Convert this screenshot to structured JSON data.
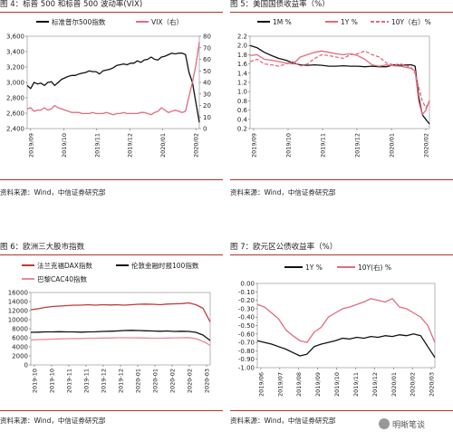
{
  "panels": [
    {
      "title": "图 4：标普 500 和标普 500 波动率(VIX)",
      "source": "资料来源：Wind，中信证券研究部",
      "chart_data": {
        "type": "line",
        "x_ticks": [
          "2019/09",
          "2019/10",
          "2019/11",
          "2019/12",
          "2020/01",
          "2020/02"
        ],
        "ylim_left": [
          2400,
          3600
        ],
        "yticks_left": [
          "2,400",
          "2,600",
          "2,800",
          "3,000",
          "3,200",
          "3,400",
          "3,600"
        ],
        "ylim_right": [
          0,
          80
        ],
        "yticks_right": [
          "0",
          "10",
          "20",
          "30",
          "40",
          "50",
          "60",
          "70",
          "80"
        ],
        "legend": "top",
        "series": [
          {
            "name": "标准普尔500指数",
            "axis": "left",
            "color": "#111111",
            "x": [
              0,
              0.02,
              0.04,
              0.06,
              0.08,
              0.1,
              0.12,
              0.14,
              0.16,
              0.18,
              0.2,
              0.22,
              0.24,
              0.26,
              0.28,
              0.3,
              0.32,
              0.34,
              0.36,
              0.38,
              0.4,
              0.42,
              0.44,
              0.46,
              0.48,
              0.5,
              0.52,
              0.54,
              0.56,
              0.58,
              0.6,
              0.62,
              0.64,
              0.66,
              0.68,
              0.7,
              0.72,
              0.74,
              0.76,
              0.78,
              0.8,
              0.82,
              0.84,
              0.86,
              0.88,
              0.9,
              0.92,
              0.94,
              0.96,
              0.98,
              1.0
            ],
            "y": [
              2960,
              2920,
              3000,
              2980,
              2990,
              2960,
              3000,
              3010,
              2960,
              3000,
              3040,
              3060,
              3080,
              3090,
              3090,
              3110,
              3120,
              3130,
              3150,
              3140,
              3140,
              3110,
              3150,
              3160,
              3170,
              3190,
              3220,
              3230,
              3240,
              3230,
              3250,
              3250,
              3280,
              3260,
              3290,
              3300,
              3330,
              3300,
              3290,
              3330,
              3340,
              3360,
              3380,
              3370,
              3380,
              3380,
              3360,
              3130,
              3000,
              2740,
              2480
            ]
          },
          {
            "name": "VIX（右）",
            "axis": "right",
            "color": "#e26b7d",
            "x": [
              0,
              0.02,
              0.04,
              0.06,
              0.08,
              0.1,
              0.12,
              0.14,
              0.16,
              0.18,
              0.2,
              0.22,
              0.24,
              0.26,
              0.28,
              0.3,
              0.32,
              0.34,
              0.36,
              0.38,
              0.4,
              0.42,
              0.44,
              0.46,
              0.48,
              0.5,
              0.52,
              0.54,
              0.56,
              0.58,
              0.6,
              0.62,
              0.64,
              0.66,
              0.68,
              0.7,
              0.72,
              0.74,
              0.76,
              0.78,
              0.8,
              0.82,
              0.84,
              0.86,
              0.88,
              0.9,
              0.92,
              0.94,
              0.96,
              0.98,
              1.0
            ],
            "y": [
              17,
              18,
              15,
              16,
              16,
              18,
              16,
              17,
              20,
              18,
              17,
              16,
              15,
              14,
              14,
              14,
              13,
              13,
              13,
              14,
              13,
              13,
              13,
              14,
              13,
              12,
              13,
              13,
              14,
              13,
              13,
              13,
              13,
              14,
              14,
              13,
              12,
              14,
              15,
              18,
              16,
              14,
              15,
              16,
              15,
              14,
              15,
              28,
              40,
              55,
              75
            ]
          }
        ]
      }
    },
    {
      "title": "图 5：美国国债收益率（%）",
      "source": "资料来源：Wind，中信证券研究部",
      "chart_data": {
        "type": "line",
        "x_ticks": [
          "2019/09",
          "2019/10",
          "2019/11",
          "2019/12",
          "2020/01",
          "2020/02"
        ],
        "ylim": [
          0.2,
          2.2
        ],
        "yticks": [
          "0.2",
          "0.4",
          "0.6",
          "0.8",
          "1.0",
          "1.2",
          "1.4",
          "1.6",
          "1.8",
          "2.0",
          "2.2"
        ],
        "legend": "top",
        "series": [
          {
            "name": "1M %",
            "color": "#111111",
            "dash": "solid",
            "x": [
              0,
              0.04,
              0.08,
              0.12,
              0.16,
              0.2,
              0.24,
              0.28,
              0.32,
              0.36,
              0.4,
              0.44,
              0.48,
              0.52,
              0.56,
              0.6,
              0.64,
              0.68,
              0.72,
              0.76,
              0.8,
              0.84,
              0.88,
              0.9,
              0.92,
              0.94,
              0.96,
              0.98,
              1.0
            ],
            "y": [
              2.0,
              1.95,
              1.85,
              1.78,
              1.72,
              1.68,
              1.62,
              1.58,
              1.57,
              1.58,
              1.57,
              1.55,
              1.55,
              1.56,
              1.55,
              1.55,
              1.54,
              1.55,
              1.54,
              1.54,
              1.58,
              1.57,
              1.58,
              1.58,
              1.55,
              0.9,
              0.5,
              0.4,
              0.3
            ]
          },
          {
            "name": "1Y %",
            "color": "#e26b7d",
            "dash": "solid",
            "x": [
              0,
              0.04,
              0.08,
              0.12,
              0.16,
              0.2,
              0.24,
              0.28,
              0.32,
              0.36,
              0.4,
              0.44,
              0.48,
              0.52,
              0.56,
              0.6,
              0.64,
              0.68,
              0.72,
              0.76,
              0.8,
              0.84,
              0.88,
              0.9,
              0.92,
              0.94,
              0.96,
              0.98,
              1.0
            ],
            "y": [
              1.78,
              1.8,
              1.7,
              1.68,
              1.65,
              1.62,
              1.6,
              1.75,
              1.8,
              1.85,
              1.88,
              1.85,
              1.82,
              1.8,
              1.82,
              1.78,
              1.7,
              1.58,
              1.55,
              1.58,
              1.56,
              1.55,
              1.52,
              1.5,
              1.45,
              0.8,
              0.5,
              0.6,
              0.8
            ]
          },
          {
            "name": "10Y（右）%",
            "color": "#e26b7d",
            "dash": "dashed",
            "x": [
              0,
              0.04,
              0.08,
              0.12,
              0.16,
              0.2,
              0.24,
              0.28,
              0.32,
              0.36,
              0.4,
              0.44,
              0.48,
              0.52,
              0.56,
              0.6,
              0.64,
              0.68,
              0.72,
              0.76,
              0.8,
              0.84,
              0.88,
              0.9,
              0.92,
              0.94,
              0.96,
              0.98,
              1.0
            ],
            "y": [
              1.65,
              1.7,
              1.6,
              1.58,
              1.55,
              1.6,
              1.65,
              1.55,
              1.6,
              1.72,
              1.8,
              1.78,
              1.75,
              1.72,
              1.8,
              1.82,
              1.88,
              1.8,
              1.75,
              1.62,
              1.58,
              1.6,
              1.55,
              1.52,
              1.4,
              1.1,
              0.8,
              0.65,
              0.8
            ]
          }
        ]
      }
    },
    {
      "title": "图 6：欧洲三大股市指数",
      "source": "资料来源：Wind，中信证券研究部",
      "chart_data": {
        "type": "line",
        "x_ticks": [
          "2019-10",
          "2019-10",
          "2019-11",
          "2019-11",
          "2019-12",
          "2019-12",
          "2020-01",
          "2020-01",
          "2020-02",
          "2020-02",
          "2020-03"
        ],
        "ylim": [
          0,
          16000
        ],
        "yticks": [
          "0",
          "2000",
          "4000",
          "6000",
          "8000",
          "10000",
          "12000",
          "14000",
          "16000"
        ],
        "legend": "top",
        "series": [
          {
            "name": "法兰克福DAX指数",
            "color": "#c0393b",
            "x": [
              0,
              0.04,
              0.08,
              0.12,
              0.16,
              0.2,
              0.24,
              0.28,
              0.32,
              0.36,
              0.4,
              0.44,
              0.48,
              0.52,
              0.56,
              0.6,
              0.64,
              0.68,
              0.72,
              0.76,
              0.8,
              0.84,
              0.88,
              0.92,
              0.96,
              0.98,
              1.0
            ],
            "y": [
              12200,
              12400,
              12700,
              12900,
              13000,
              13100,
              13200,
              13200,
              13300,
              13200,
              13300,
              13250,
              13300,
              13200,
              13300,
              13400,
              13450,
              13400,
              13300,
              13450,
              13500,
              13550,
              13700,
              13300,
              12500,
              11000,
              9500
            ]
          },
          {
            "name": "伦敦金融时报100指数",
            "color": "#111111",
            "x": [
              0,
              0.04,
              0.08,
              0.12,
              0.16,
              0.2,
              0.24,
              0.28,
              0.32,
              0.36,
              0.4,
              0.44,
              0.48,
              0.52,
              0.56,
              0.6,
              0.64,
              0.68,
              0.72,
              0.76,
              0.8,
              0.84,
              0.88,
              0.92,
              0.96,
              0.98,
              1.0
            ],
            "y": [
              7200,
              7250,
              7300,
              7300,
              7350,
              7300,
              7300,
              7250,
              7300,
              7320,
              7400,
              7450,
              7500,
              7600,
              7650,
              7600,
              7550,
              7500,
              7450,
              7500,
              7400,
              7450,
              7400,
              7200,
              6600,
              6000,
              5400
            ]
          },
          {
            "name": "巴黎CAC40指数",
            "color": "#e88a98",
            "x": [
              0,
              0.04,
              0.08,
              0.12,
              0.16,
              0.2,
              0.24,
              0.28,
              0.32,
              0.36,
              0.4,
              0.44,
              0.48,
              0.52,
              0.56,
              0.6,
              0.64,
              0.68,
              0.72,
              0.76,
              0.8,
              0.84,
              0.88,
              0.92,
              0.96,
              0.98,
              1.0
            ],
            "y": [
              5500,
              5600,
              5650,
              5700,
              5750,
              5800,
              5850,
              5850,
              5900,
              5900,
              5950,
              5950,
              6000,
              6000,
              5980,
              6000,
              5950,
              5900,
              5900,
              5950,
              5980,
              6000,
              6050,
              5800,
              5200,
              4800,
              4300
            ]
          }
        ]
      }
    },
    {
      "title": "图 7：欧元区公债收益率（%）",
      "source": "资料来源：Wind，中信证券研究部",
      "chart_data": {
        "type": "line",
        "x_ticks": [
          "2019/06",
          "2019/07",
          "2019/08",
          "2019/09",
          "2019/10",
          "2019/11",
          "2019/12",
          "2020/01",
          "2020/02",
          "2020/03"
        ],
        "ylim": [
          -1.0,
          0.0
        ],
        "yticks": [
          "0.00",
          "-0.10",
          "-0.20",
          "-0.30",
          "-0.40",
          "-0.50",
          "-0.60",
          "-0.70",
          "-0.80",
          "-0.90",
          "-1.00"
        ],
        "legend": "top",
        "series": [
          {
            "name": "1Y %",
            "color": "#111111",
            "x": [
              0,
              0.04,
              0.08,
              0.12,
              0.16,
              0.2,
              0.24,
              0.28,
              0.32,
              0.36,
              0.4,
              0.44,
              0.48,
              0.52,
              0.56,
              0.6,
              0.64,
              0.68,
              0.72,
              0.76,
              0.8,
              0.84,
              0.88,
              0.92,
              0.96,
              1.0
            ],
            "y": [
              -0.68,
              -0.7,
              -0.72,
              -0.75,
              -0.78,
              -0.82,
              -0.86,
              -0.84,
              -0.75,
              -0.72,
              -0.7,
              -0.68,
              -0.65,
              -0.66,
              -0.64,
              -0.65,
              -0.63,
              -0.64,
              -0.62,
              -0.63,
              -0.61,
              -0.62,
              -0.6,
              -0.62,
              -0.75,
              -0.88
            ]
          },
          {
            "name": "10Y(右) %",
            "color": "#e26b7d",
            "x": [
              0,
              0.04,
              0.08,
              0.12,
              0.16,
              0.2,
              0.24,
              0.28,
              0.32,
              0.36,
              0.4,
              0.44,
              0.48,
              0.52,
              0.56,
              0.6,
              0.64,
              0.68,
              0.72,
              0.76,
              0.8,
              0.84,
              0.88,
              0.92,
              0.96,
              1.0
            ],
            "y": [
              -0.25,
              -0.28,
              -0.35,
              -0.42,
              -0.55,
              -0.62,
              -0.68,
              -0.7,
              -0.58,
              -0.52,
              -0.4,
              -0.35,
              -0.3,
              -0.28,
              -0.25,
              -0.22,
              -0.18,
              -0.2,
              -0.22,
              -0.18,
              -0.28,
              -0.3,
              -0.35,
              -0.4,
              -0.5,
              -0.7
            ]
          }
        ]
      }
    }
  ],
  "watermark": {
    "text": "明晰笔谈"
  }
}
